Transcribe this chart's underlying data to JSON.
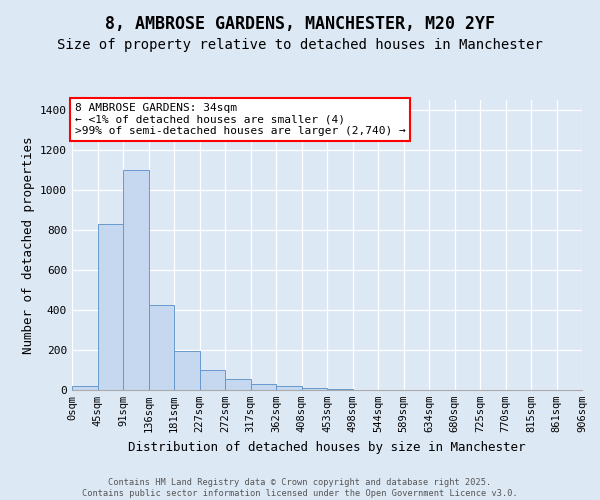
{
  "title": "8, AMBROSE GARDENS, MANCHESTER, M20 2YF",
  "subtitle": "Size of property relative to detached houses in Manchester",
  "xlabel": "Distribution of detached houses by size in Manchester",
  "ylabel": "Number of detached properties",
  "bar_color": "#c5d8f0",
  "bar_edge_color": "#6699cc",
  "background_color": "#dde8f5",
  "annotation_text": "8 AMBROSE GARDENS: 34sqm\n← <1% of detached houses are smaller (4)\n>99% of semi-detached houses are larger (2,740) →",
  "annotation_box_color": "white",
  "annotation_box_edge": "red",
  "num_bins": 20,
  "bar_values": [
    20,
    830,
    1100,
    425,
    195,
    100,
    55,
    30,
    20,
    10,
    5,
    2,
    1,
    0,
    0,
    0,
    0,
    0,
    0,
    0
  ],
  "tick_labels": [
    "0sqm",
    "45sqm",
    "91sqm",
    "136sqm",
    "181sqm",
    "227sqm",
    "272sqm",
    "317sqm",
    "362sqm",
    "408sqm",
    "453sqm",
    "498sqm",
    "544sqm",
    "589sqm",
    "634sqm",
    "680sqm",
    "725sqm",
    "770sqm",
    "815sqm",
    "861sqm",
    "906sqm"
  ],
  "ylim": [
    0,
    1450
  ],
  "yticks": [
    0,
    200,
    400,
    600,
    800,
    1000,
    1200,
    1400
  ],
  "footer_text": "Contains HM Land Registry data © Crown copyright and database right 2025.\nContains public sector information licensed under the Open Government Licence v3.0.",
  "title_fontsize": 12,
  "subtitle_fontsize": 10,
  "tick_fontsize": 7.5,
  "ylabel_fontsize": 9,
  "xlabel_fontsize": 9,
  "annotation_fontsize": 8
}
